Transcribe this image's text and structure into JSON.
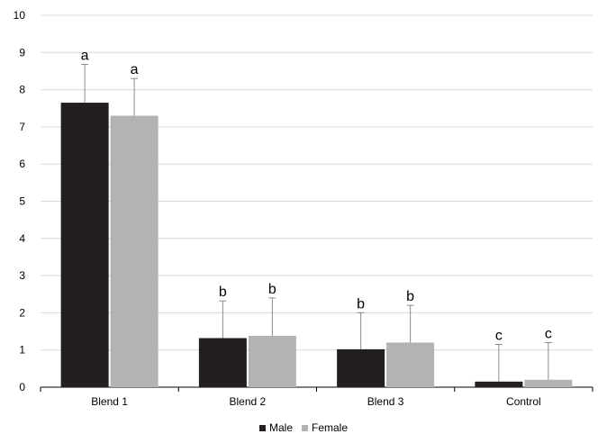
{
  "chart_data": {
    "type": "bar",
    "title": "",
    "xlabel": "",
    "ylabel": "",
    "categories": [
      "Blend 1",
      "Blend 2",
      "Blend 3",
      "Control"
    ],
    "series": [
      {
        "name": "Male",
        "color": "#231f20",
        "values": [
          7.65,
          1.32,
          1.02,
          0.15
        ],
        "error": [
          1.03,
          1.0,
          0.98,
          1.0
        ],
        "labels": [
          "a",
          "b",
          "b",
          "c"
        ]
      },
      {
        "name": "Female",
        "color": "#b3b3b3",
        "values": [
          7.3,
          1.38,
          1.2,
          0.2
        ],
        "error": [
          1.0,
          1.02,
          1.0,
          1.0
        ],
        "labels": [
          "a",
          "b",
          "b",
          "c"
        ]
      }
    ],
    "ylim": [
      0,
      10
    ],
    "yticks": [
      0,
      1,
      2,
      3,
      4,
      5,
      6,
      7,
      8,
      9,
      10
    ],
    "grid": true,
    "gridline_color": "#d9d9d9",
    "axis_color": "#000000",
    "error_bar_color": "#8c8c8c",
    "legend_position": "bottom"
  }
}
